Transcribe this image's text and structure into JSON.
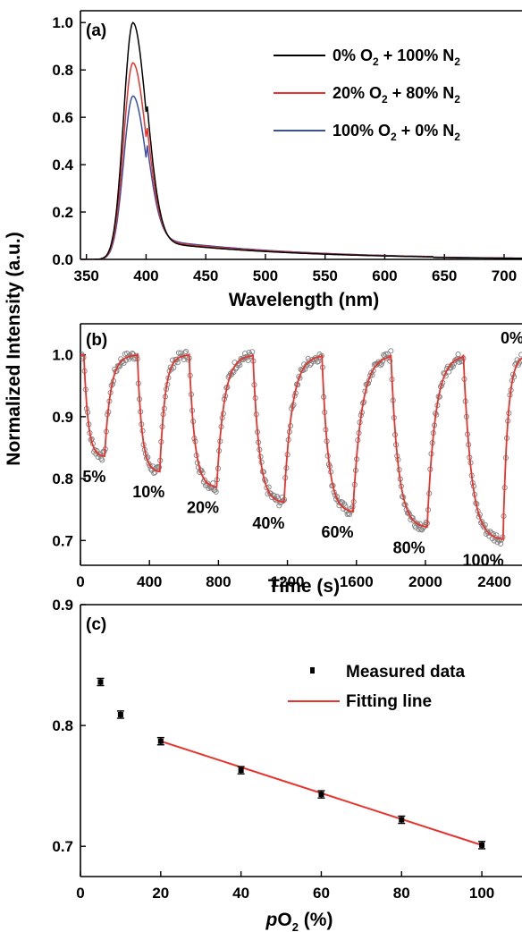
{
  "shared": {
    "ylabel": "Normalized Intensity (a.u.)"
  },
  "chart_data": [
    {
      "panel": "(a)",
      "type": "line",
      "xlabel": "Wavelength (nm)",
      "xlim": [
        345,
        715
      ],
      "ylim": [
        0,
        1.05
      ],
      "xticks": [
        "350",
        "400",
        "450",
        "500",
        "550",
        "600",
        "650",
        "700"
      ],
      "yticks": [
        "0.0",
        "0.2",
        "0.4",
        "0.6",
        "0.8",
        "1.0"
      ],
      "legend_position": "top-right",
      "series": [
        {
          "name": "0% O2 + 100% N2",
          "legend": {
            "pre": "0% O",
            "sub1": "2",
            "mid": " + 100% N",
            "sub2": "2"
          },
          "color": "#000000",
          "peak": 1.0,
          "tail": 0.065
        },
        {
          "name": "20% O2 + 80% N2",
          "legend": {
            "pre": "20% O",
            "sub1": "2",
            "mid": " + 80% N",
            "sub2": "2"
          },
          "color": "#e8322b",
          "peak": 0.83,
          "tail": 0.07
        },
        {
          "name": "100% O2 + 0% N2",
          "legend": {
            "pre": "100% O",
            "sub1": "2",
            "mid": " + 0% N",
            "sub2": "2"
          },
          "color": "#3a4fa6",
          "peak": 0.69,
          "tail": 0.075
        }
      ],
      "points": {
        "x": [
          350,
          365,
          375,
          380,
          385,
          388,
          390,
          392,
          395,
          400,
          405,
          410,
          420,
          430,
          450,
          500,
          550,
          600,
          650,
          700,
          715
        ]
      }
    },
    {
      "panel": "(b)",
      "type": "scatter",
      "xlabel": "Time (s)",
      "xlim": [
        0,
        2560
      ],
      "ylim": [
        0.66,
        1.05
      ],
      "xticks": [
        "0",
        "400",
        "800",
        "1200",
        "1600",
        "2000",
        "2400"
      ],
      "yticks": [
        "0.7",
        "0.8",
        "0.9",
        "1.0"
      ],
      "fit_color": "#e8322b",
      "marker_color": "#808080",
      "cycles": [
        {
          "label": "5%",
          "start": 20,
          "end": 140,
          "rise": 280,
          "level": 0.835
        },
        {
          "label": "10%",
          "start": 330,
          "end": 460,
          "rise": 580,
          "level": 0.81
        },
        {
          "label": "20%",
          "start": 630,
          "end": 790,
          "rise": 960,
          "level": 0.785
        },
        {
          "label": "40%",
          "start": 1000,
          "end": 1180,
          "rise": 1370,
          "level": 0.76
        },
        {
          "label": "60%",
          "start": 1400,
          "end": 1580,
          "rise": 1780,
          "level": 0.745
        },
        {
          "label": "80%",
          "start": 1800,
          "end": 2010,
          "rise": 2200,
          "level": 0.72
        },
        {
          "label": "100%",
          "start": 2220,
          "end": 2450,
          "rise": 2560,
          "level": 0.7
        }
      ],
      "annotation_top": "0%"
    },
    {
      "panel": "(c)",
      "type": "scatter",
      "xlabel_parts": {
        "italic": "p",
        "main": "O",
        "sub": "2",
        "tail": " (%)"
      },
      "xlim": [
        0,
        110
      ],
      "ylim": [
        0.675,
        0.9
      ],
      "xticks": [
        "0",
        "20",
        "40",
        "60",
        "80",
        "100"
      ],
      "yticks": [
        "0.7",
        "0.8",
        "0.9"
      ],
      "legend_position": "top-right",
      "legend": [
        "Measured data",
        "Fitting line"
      ],
      "measured": {
        "x": [
          5,
          10,
          20,
          40,
          60,
          80,
          100
        ],
        "y": [
          0.836,
          0.809,
          0.787,
          0.763,
          0.743,
          0.722,
          0.701
        ],
        "err": [
          0.003,
          0.003,
          0.003,
          0.003,
          0.003,
          0.003,
          0.003
        ]
      },
      "fit": {
        "x": [
          20,
          100
        ],
        "y": [
          0.787,
          0.701
        ],
        "color": "#e8322b"
      }
    }
  ]
}
